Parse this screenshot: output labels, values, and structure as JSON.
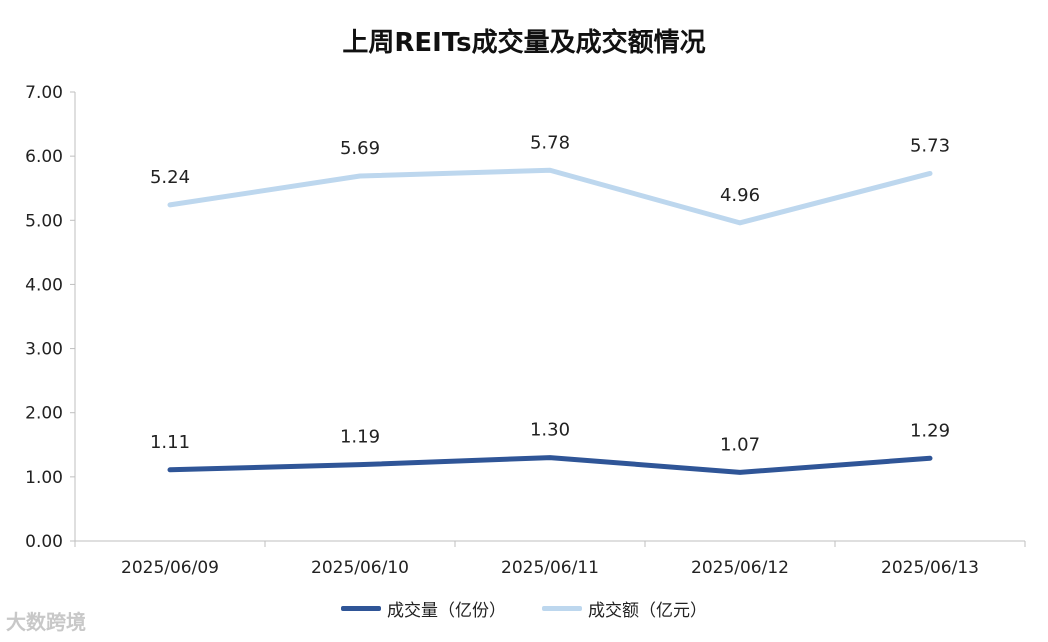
{
  "chart_data": {
    "type": "line",
    "title": "上周REITs成交量及成交额情况",
    "categories": [
      "2025/06/09",
      "2025/06/10",
      "2025/06/11",
      "2025/06/12",
      "2025/06/13"
    ],
    "series": [
      {
        "name": "成交量（亿份）",
        "values": [
          1.11,
          1.19,
          1.3,
          1.07,
          1.29
        ],
        "labels": [
          "1.11",
          "1.19",
          "1.30",
          "1.07",
          "1.29"
        ],
        "color": "#2f5597"
      },
      {
        "name": "成交额（亿元）",
        "values": [
          5.24,
          5.69,
          5.78,
          4.96,
          5.73
        ],
        "labels": [
          "5.24",
          "5.69",
          "5.78",
          "4.96",
          "5.73"
        ],
        "color": "#bdd7ee"
      }
    ],
    "yticks": [
      "0.00",
      "1.00",
      "2.00",
      "3.00",
      "4.00",
      "5.00",
      "6.00",
      "7.00"
    ],
    "ylim": [
      0,
      7
    ],
    "grid": false,
    "legend_position": "bottom"
  },
  "watermark": "大数跨境"
}
